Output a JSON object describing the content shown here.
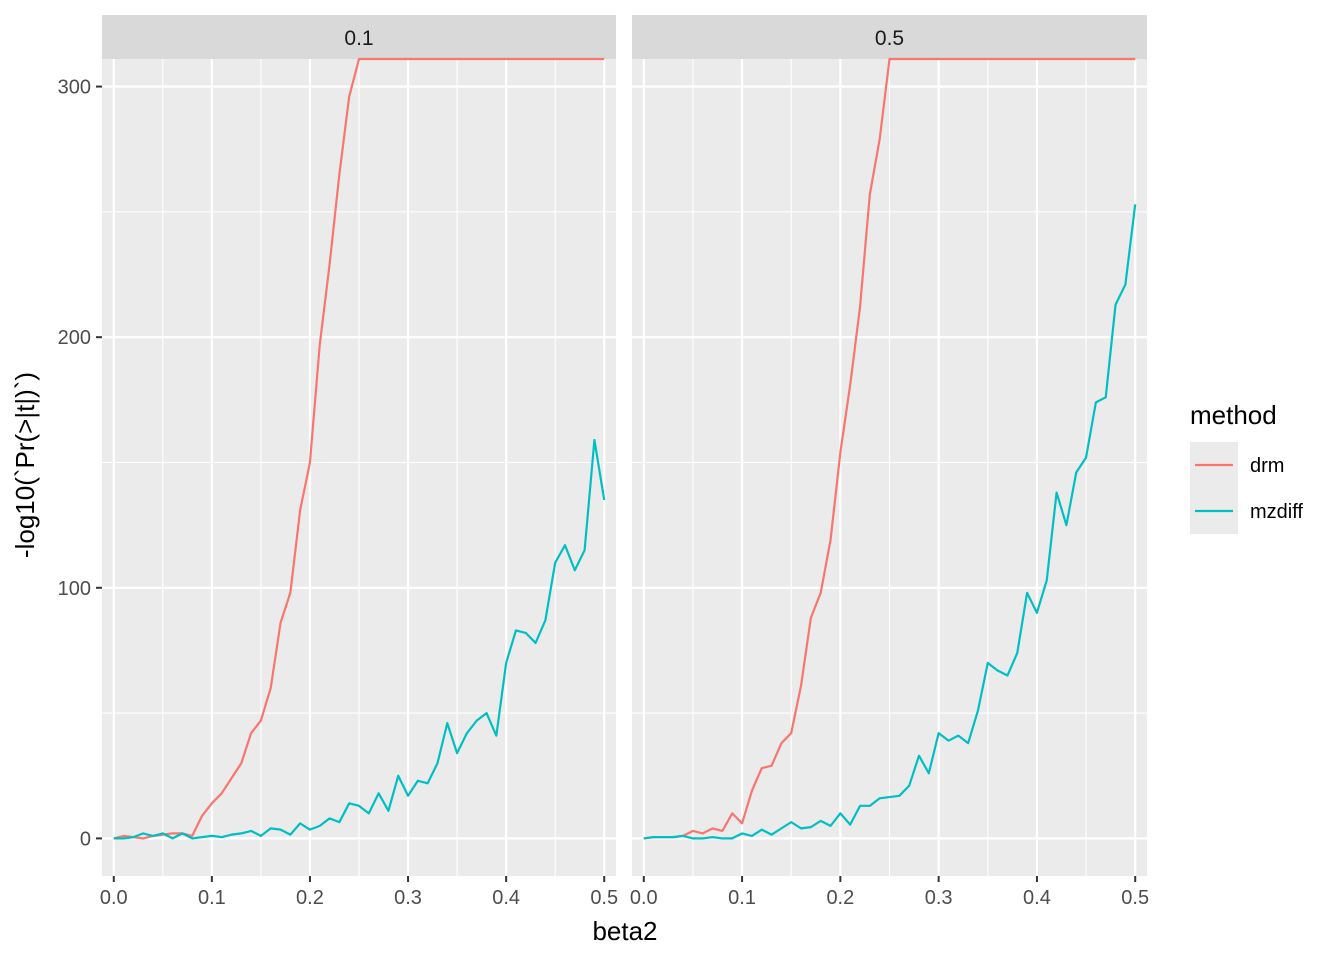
{
  "chart_data": {
    "type": "line",
    "facet_labels": [
      "0.1",
      "0.5"
    ],
    "xlabel": "beta2",
    "ylabel": "-log10(`Pr(>|t|)`)",
    "xlim": [
      -0.012,
      0.512
    ],
    "ylim": [
      -15,
      311
    ],
    "x_ticks": [
      0.0,
      0.1,
      0.2,
      0.3,
      0.4,
      0.5
    ],
    "x_tick_labels": [
      "0.0",
      "0.1",
      "0.2",
      "0.3",
      "0.4",
      "0.5"
    ],
    "y_ticks": [
      0,
      100,
      200,
      300
    ],
    "y_tick_labels": [
      "0",
      "100",
      "200",
      "300"
    ],
    "grid": true,
    "legend": {
      "title": "method",
      "position": "right",
      "entries": [
        {
          "name": "drm",
          "color": "#F8766D"
        },
        {
          "name": "mzdiff",
          "color": "#00BFC4"
        }
      ]
    },
    "x": [
      0.0,
      0.01,
      0.02,
      0.03,
      0.04,
      0.05,
      0.06,
      0.07,
      0.08,
      0.09,
      0.1,
      0.11,
      0.12,
      0.13,
      0.14,
      0.15,
      0.16,
      0.17,
      0.18,
      0.19,
      0.2,
      0.21,
      0.22,
      0.23,
      0.24,
      0.25,
      0.26,
      0.27,
      0.28,
      0.29,
      0.3,
      0.31,
      0.32,
      0.33,
      0.34,
      0.35,
      0.36,
      0.37,
      0.38,
      0.39,
      0.4,
      0.41,
      0.42,
      0.43,
      0.44,
      0.45,
      0.46,
      0.47,
      0.48,
      0.49,
      0.5
    ],
    "panels": [
      {
        "facet": "0.1",
        "series": [
          {
            "name": "drm",
            "color": "#F8766D",
            "values": [
              0,
              1,
              0.5,
              0,
              1,
              1.5,
              2,
              2,
              1,
              9,
              14,
              18,
              24,
              30,
              42,
              47,
              60,
              86,
              98,
              131,
              150,
              197,
              229,
              265,
              296,
              311,
              311,
              311,
              311,
              311,
              311,
              311,
              311,
              311,
              311,
              311,
              311,
              311,
              311,
              311,
              311,
              311,
              311,
              311,
              311,
              311,
              311,
              311,
              311,
              311,
              311
            ]
          },
          {
            "name": "mzdiff",
            "color": "#00BFC4",
            "values": [
              0,
              0,
              0.5,
              2,
              1,
              2,
              0,
              2,
              0,
              0.5,
              1,
              0.5,
              1.5,
              2,
              3,
              1,
              4,
              3.5,
              1.5,
              6,
              3.5,
              5,
              8,
              6.5,
              14,
              13,
              10,
              18,
              11,
              25,
              17,
              23,
              22,
              30,
              46,
              34,
              42,
              47,
              50,
              41,
              70,
              83,
              82,
              78,
              87,
              110,
              117,
              107,
              115,
              159,
              135
            ]
          }
        ]
      },
      {
        "facet": "0.5",
        "series": [
          {
            "name": "drm",
            "color": "#F8766D",
            "values": [
              0,
              0.5,
              0.5,
              0.5,
              1,
              3,
              2,
              4,
              3,
              10,
              6,
              19,
              28,
              29,
              38,
              42,
              61,
              88,
              98,
              119,
              154,
              181,
              212,
              257,
              279,
              311,
              311,
              311,
              311,
              311,
              311,
              311,
              311,
              311,
              311,
              311,
              311,
              311,
              311,
              311,
              311,
              311,
              311,
              311,
              311,
              311,
              311,
              311,
              311,
              311,
              311
            ]
          },
          {
            "name": "mzdiff",
            "color": "#00BFC4",
            "values": [
              0,
              0.5,
              0.5,
              0.5,
              1,
              0,
              0,
              0.5,
              0,
              0,
              2,
              1,
              3.5,
              1.5,
              4,
              6.5,
              4,
              4.5,
              7,
              5,
              10,
              5.5,
              13,
              13,
              16,
              16.5,
              17,
              21,
              33,
              26,
              42,
              39,
              41,
              38,
              51,
              70,
              67,
              65,
              74,
              98,
              90,
              103,
              138,
              125,
              146,
              152,
              174,
              176,
              213,
              221,
              253
            ]
          }
        ]
      }
    ]
  }
}
